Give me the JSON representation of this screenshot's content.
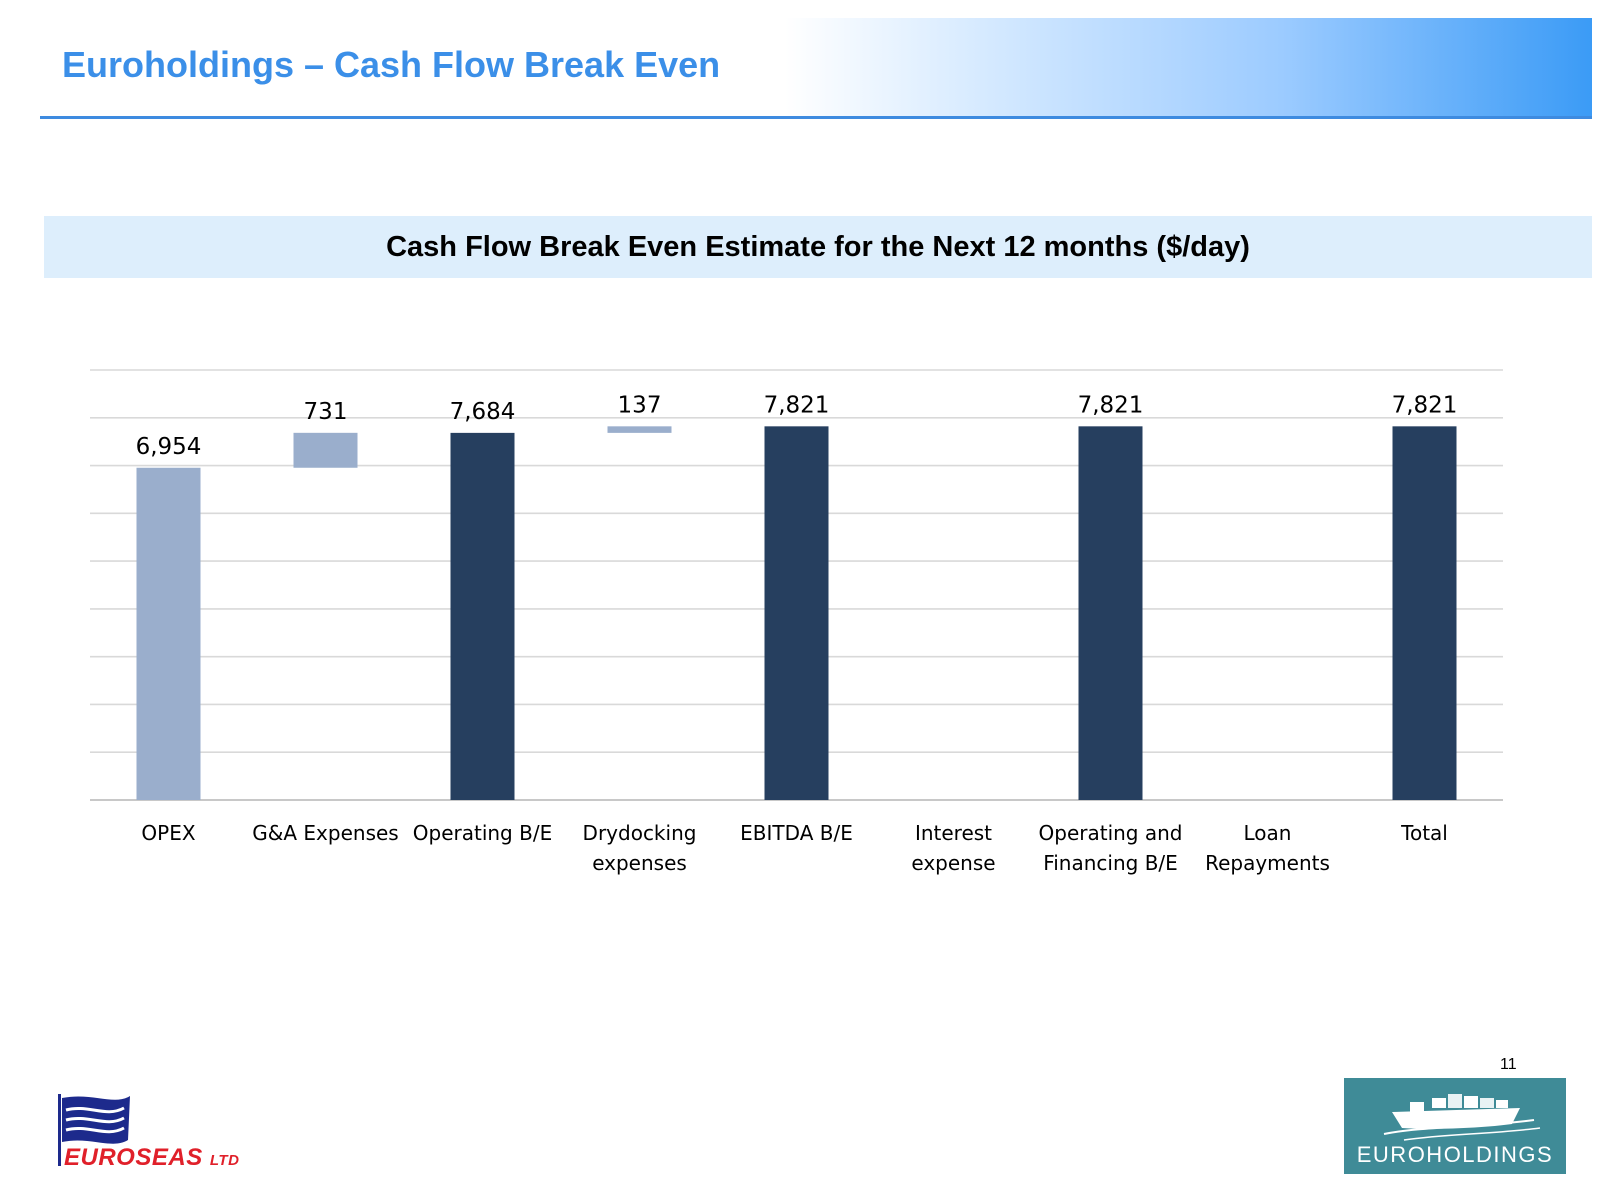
{
  "header": {
    "title": "Euroholdings – Cash Flow Break Even"
  },
  "colors": {
    "title_blue": "#3b8fe8",
    "total_bar": "#263f5f",
    "component_bar": "#9aaecc",
    "grid": "#d9d9d9",
    "title_band": "#ddeefc",
    "euroseas_red": "#e0202a",
    "euroholdings_teal": "#3f8b97"
  },
  "chart_data": {
    "type": "bar",
    "subtype": "waterfall",
    "title": "Cash Flow Break Even Estimate for the Next 12 months ($/day)",
    "categories": [
      [
        "OPEX"
      ],
      [
        "G&A Expenses"
      ],
      [
        "Operating B/E"
      ],
      [
        "Drydocking",
        "expenses"
      ],
      [
        "EBITDA B/E"
      ],
      [
        "Interest",
        "expense"
      ],
      [
        "Operating and",
        "Financing B/E"
      ],
      [
        "Loan",
        "Repayments"
      ],
      [
        "Total"
      ]
    ],
    "bars": [
      {
        "base": 0,
        "value": 6954,
        "kind": "component",
        "label": "6,954"
      },
      {
        "base": 6954,
        "value": 731,
        "kind": "component",
        "label": "731"
      },
      {
        "base": 0,
        "value": 7684,
        "kind": "total",
        "label": "7,684"
      },
      {
        "base": 7684,
        "value": 137,
        "kind": "component",
        "label": "137"
      },
      {
        "base": 0,
        "value": 7821,
        "kind": "total",
        "label": "7,821"
      },
      {
        "base": 7821,
        "value": 0,
        "kind": "component",
        "label": ""
      },
      {
        "base": 0,
        "value": 7821,
        "kind": "total",
        "label": "7,821"
      },
      {
        "base": 7821,
        "value": 0,
        "kind": "component",
        "label": ""
      },
      {
        "base": 0,
        "value": 7821,
        "kind": "total",
        "label": "7,821"
      }
    ],
    "ylim": [
      0,
      9000
    ],
    "grid_step": 1000,
    "grid": true,
    "show_y_tick_labels": false,
    "legend": "none"
  },
  "footer": {
    "page_number": "11",
    "left_logo_text": "EUROSEAS",
    "left_logo_suffix": "LTD",
    "right_logo_text": "EUROHOLDINGS"
  }
}
